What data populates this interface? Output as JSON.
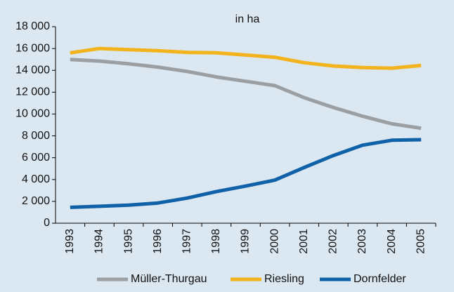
{
  "chart_data": {
    "type": "line",
    "title": "in ha",
    "categories": [
      "1993",
      "1994",
      "1995",
      "1996",
      "1997",
      "1998",
      "1999",
      "2000",
      "2001",
      "2002",
      "2003",
      "2004",
      "2005"
    ],
    "series": [
      {
        "name": "Müller-Thurgau",
        "color": "#9a9fa3",
        "values": [
          15000,
          14850,
          14600,
          14300,
          13900,
          13400,
          13000,
          12600,
          11500,
          10600,
          9800,
          9100,
          8700
        ]
      },
      {
        "name": "Riesling",
        "color": "#f2b31c",
        "values": [
          15600,
          16000,
          15900,
          15800,
          15650,
          15600,
          15400,
          15200,
          14700,
          14400,
          14250,
          14200,
          14450
        ]
      },
      {
        "name": "Dornfelder",
        "color": "#0f62a8",
        "values": [
          1450,
          1550,
          1650,
          1850,
          2300,
          2900,
          3400,
          3950,
          5100,
          6200,
          7150,
          7600,
          7650
        ]
      }
    ],
    "ylim": [
      0,
      18000
    ],
    "yticks": [
      0,
      {
        "value": 2000,
        "label": "2 000"
      },
      {
        "value": 4000,
        "label": "4 000"
      },
      {
        "value": 6000,
        "label": "6 000"
      },
      {
        "value": 8000,
        "label": "8 000"
      },
      {
        "value": 10000,
        "label": "10 000"
      },
      {
        "value": 12000,
        "label": "12 000"
      },
      {
        "value": 14000,
        "label": "14 000"
      },
      {
        "value": 16000,
        "label": "16 000"
      },
      {
        "value": 18000,
        "label": "18 000"
      }
    ],
    "grid": false,
    "legend": "bottom"
  }
}
